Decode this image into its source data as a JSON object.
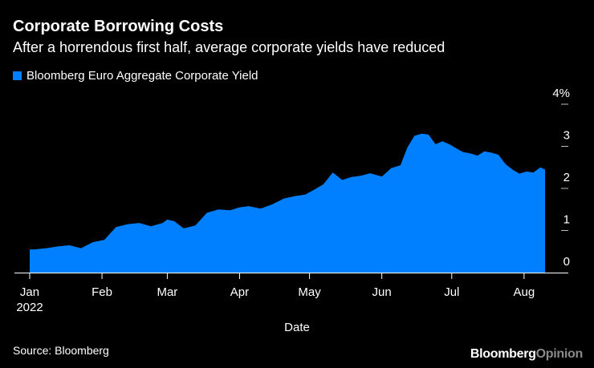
{
  "header": {
    "title": "Corporate Borrowing Costs",
    "subtitle": "After a horrendous first half, average corporate yields have reduced"
  },
  "footer": {
    "source": "Source: Bloomberg",
    "brand_main": "Bloomberg",
    "brand_suffix": "Opinion"
  },
  "chart_data": {
    "type": "area",
    "title": "Corporate Borrowing Costs",
    "subtitle": "After a horrendous first half, average corporate yields have reduced",
    "xlabel": "Date",
    "ylabel": "",
    "ylim": [
      0,
      4
    ],
    "y_ticks": [
      "0",
      "1",
      "2",
      "3",
      "4%"
    ],
    "x_ticks": [
      "Jan",
      "Feb",
      "Mar",
      "Apr",
      "May",
      "Jun",
      "Jul",
      "Aug"
    ],
    "x_year_label": "2022",
    "legend_position": "top-left",
    "grid": false,
    "colors": {
      "series": "#0080ff",
      "background": "#000000",
      "text": "#ffffff"
    },
    "series": [
      {
        "name": "Bloomberg Euro Aggregate Corporate Yield",
        "x": [
          "2022-01-01",
          "2022-01-03",
          "2022-01-08",
          "2022-01-13",
          "2022-01-18",
          "2022-01-23",
          "2022-01-28",
          "2022-02-02",
          "2022-02-07",
          "2022-02-12",
          "2022-02-17",
          "2022-02-22",
          "2022-02-27",
          "2022-03-01",
          "2022-03-04",
          "2022-03-08",
          "2022-03-13",
          "2022-03-18",
          "2022-03-23",
          "2022-03-28",
          "2022-04-01",
          "2022-04-05",
          "2022-04-10",
          "2022-04-15",
          "2022-04-20",
          "2022-04-25",
          "2022-04-29",
          "2022-05-03",
          "2022-05-07",
          "2022-05-11",
          "2022-05-15",
          "2022-05-19",
          "2022-05-23",
          "2022-05-27",
          "2022-06-01",
          "2022-06-05",
          "2022-06-09",
          "2022-06-12",
          "2022-06-15",
          "2022-06-18",
          "2022-06-21",
          "2022-06-24",
          "2022-06-27",
          "2022-06-30",
          "2022-07-03",
          "2022-07-06",
          "2022-07-09",
          "2022-07-12",
          "2022-07-15",
          "2022-07-18",
          "2022-07-21",
          "2022-07-24",
          "2022-07-27",
          "2022-07-30",
          "2022-08-02",
          "2022-08-05",
          "2022-08-08",
          "2022-08-10"
        ],
        "values": [
          0.55,
          0.55,
          0.58,
          0.62,
          0.65,
          0.58,
          0.72,
          0.78,
          1.08,
          1.15,
          1.18,
          1.1,
          1.18,
          1.26,
          1.22,
          1.05,
          1.12,
          1.42,
          1.5,
          1.48,
          1.55,
          1.58,
          1.52,
          1.62,
          1.76,
          1.82,
          1.85,
          1.97,
          2.1,
          2.38,
          2.2,
          2.27,
          2.3,
          2.36,
          2.28,
          2.48,
          2.55,
          2.98,
          3.25,
          3.3,
          3.28,
          3.05,
          3.12,
          3.05,
          2.95,
          2.86,
          2.83,
          2.78,
          2.88,
          2.85,
          2.8,
          2.58,
          2.45,
          2.35,
          2.4,
          2.38,
          2.5,
          2.45
        ]
      }
    ]
  }
}
